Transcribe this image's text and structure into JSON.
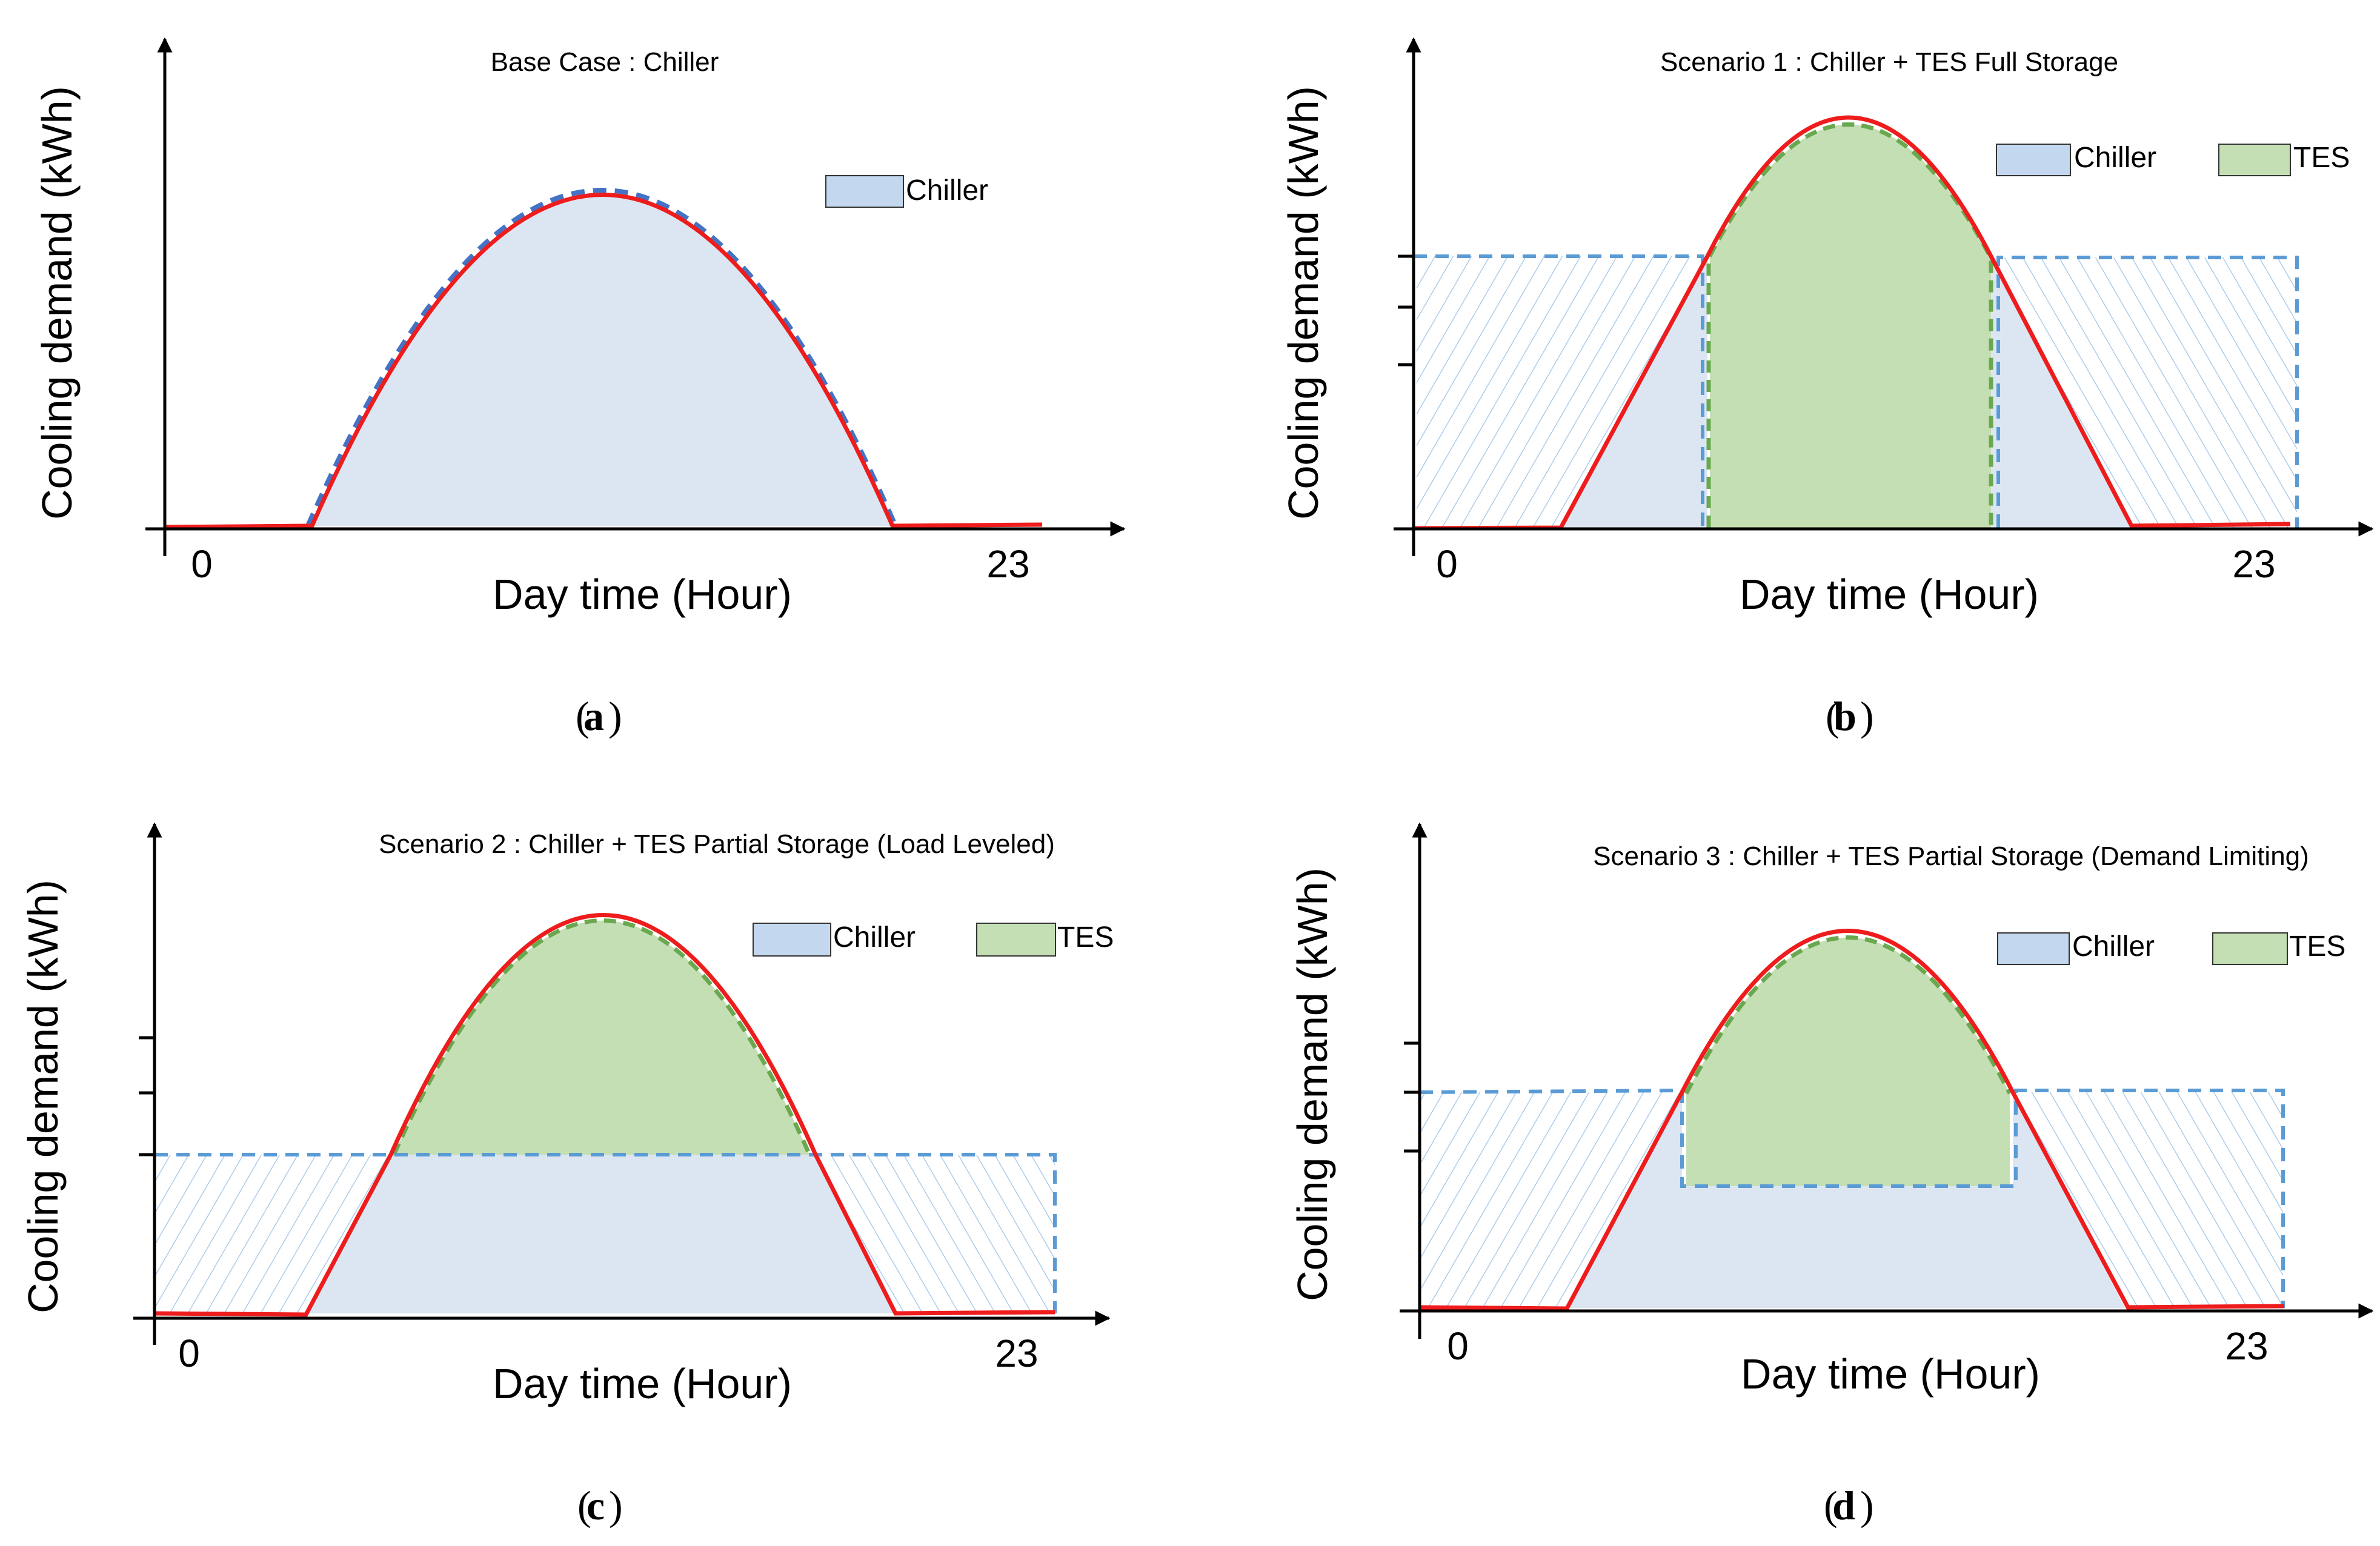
{
  "figure": {
    "colors": {
      "chiller": "#dce6f2",
      "chiller_legend": "#c3d8ee",
      "tes": "#c4dfb4",
      "tes_legend": "#c4dfb4",
      "demand_curve": "#ee1c1c",
      "chiller_outline": "#4472c4",
      "tes_outline": "#6aa84f",
      "storage_outline": "#5b9bd5",
      "hatch": "#9dc3e6",
      "axis": "#000000"
    },
    "panels": [
      {
        "id": "a",
        "caption": "a",
        "title": "Base Case : Chiller",
        "xlabel": "Day time (Hour)",
        "ylabel": "Cooling demand (kWh)",
        "x_start_label": "0",
        "x_end_label": "23",
        "legend": [
          {
            "label": "Chiller",
            "color": "chiller_legend"
          }
        ]
      },
      {
        "id": "b",
        "caption": "b",
        "title": "Scenario 1 : Chiller + TES Full Storage",
        "xlabel": "Day time (Hour)",
        "ylabel": "Cooling demand (kWh)",
        "x_start_label": "0",
        "x_end_label": "23",
        "legend": [
          {
            "label": "Chiller",
            "color": "chiller_legend"
          },
          {
            "label": "TES",
            "color": "tes_legend"
          }
        ]
      },
      {
        "id": "c",
        "caption": "c",
        "title": "Scenario 2 : Chiller + TES Partial Storage (Load Leveled)",
        "xlabel": "Day time (Hour)",
        "ylabel": "Cooling demand (kWh)",
        "x_start_label": "0",
        "x_end_label": "23",
        "legend": [
          {
            "label": "Chiller",
            "color": "chiller_legend"
          },
          {
            "label": "TES",
            "color": "tes_legend"
          }
        ]
      },
      {
        "id": "d",
        "caption": "d",
        "title": "Scenario 3 : Chiller + TES Partial Storage (Demand Limiting)",
        "xlabel": "Day time (Hour)",
        "ylabel": "Cooling demand (kWh)",
        "x_start_label": "0",
        "x_end_label": "23",
        "legend": [
          {
            "label": "Chiller",
            "color": "chiller_legend"
          },
          {
            "label": "TES",
            "color": "tes_legend"
          }
        ]
      }
    ]
  }
}
